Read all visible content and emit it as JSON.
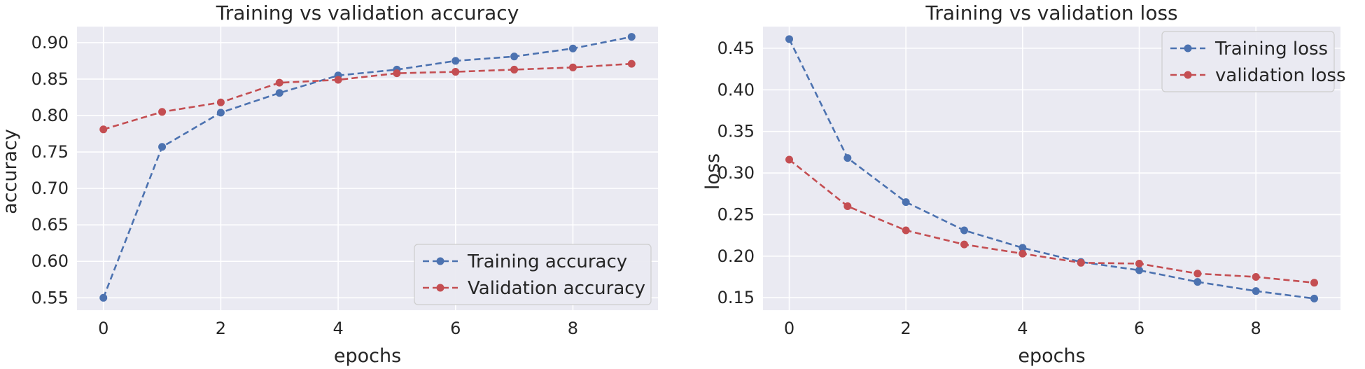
{
  "chart_data": [
    {
      "type": "line",
      "title": "Training vs validation accuracy",
      "xlabel": "epochs",
      "ylabel": "accuracy",
      "x": [
        0,
        1,
        2,
        3,
        4,
        5,
        6,
        7,
        8,
        9
      ],
      "xlim": [
        -0.45,
        9.45
      ],
      "ylim": [
        0.533,
        0.922
      ],
      "xticks": [
        0,
        2,
        4,
        6,
        8
      ],
      "yticks": [
        0.55,
        0.6,
        0.65,
        0.7,
        0.75,
        0.8,
        0.85,
        0.9
      ],
      "xtick_labels": [
        "0",
        "2",
        "4",
        "6",
        "8"
      ],
      "ytick_labels": [
        "0.55",
        "0.60",
        "0.65",
        "0.70",
        "0.75",
        "0.80",
        "0.85",
        "0.90"
      ],
      "grid": true,
      "legend_position": "lower-right",
      "series": [
        {
          "name": "Training accuracy",
          "color": "#4c72b0",
          "values": [
            0.55,
            0.757,
            0.804,
            0.831,
            0.855,
            0.863,
            0.875,
            0.881,
            0.892,
            0.908
          ]
        },
        {
          "name": "Validation accuracy",
          "color": "#c44e52",
          "values": [
            0.781,
            0.805,
            0.818,
            0.845,
            0.849,
            0.858,
            0.86,
            0.863,
            0.866,
            0.871
          ]
        }
      ]
    },
    {
      "type": "line",
      "title": "Training vs validation loss",
      "xlabel": "epochs",
      "ylabel": "loss",
      "x": [
        0,
        1,
        2,
        3,
        4,
        5,
        6,
        7,
        8,
        9
      ],
      "xlim": [
        -0.45,
        9.45
      ],
      "ylim": [
        0.135,
        0.476
      ],
      "xticks": [
        0,
        2,
        4,
        6,
        8
      ],
      "yticks": [
        0.15,
        0.2,
        0.25,
        0.3,
        0.35,
        0.4,
        0.45
      ],
      "xtick_labels": [
        "0",
        "2",
        "4",
        "6",
        "8"
      ],
      "ytick_labels": [
        "0.15",
        "0.20",
        "0.25",
        "0.30",
        "0.35",
        "0.40",
        "0.45"
      ],
      "grid": true,
      "legend_position": "top-right",
      "series": [
        {
          "name": "Training loss",
          "color": "#4c72b0",
          "values": [
            0.461,
            0.318,
            0.265,
            0.231,
            0.21,
            0.193,
            0.183,
            0.169,
            0.158,
            0.149
          ]
        },
        {
          "name": "validation loss",
          "color": "#c44e52",
          "values": [
            0.316,
            0.26,
            0.231,
            0.214,
            0.203,
            0.192,
            0.191,
            0.179,
            0.175,
            0.168
          ]
        }
      ]
    }
  ]
}
